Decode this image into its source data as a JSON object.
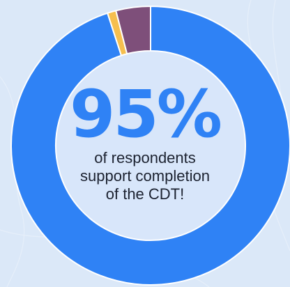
{
  "colors": {
    "background": "#dbe8f8",
    "primary": "#2f82f5",
    "text": "#1c2230"
  },
  "headline": {
    "value": "95%",
    "line1": "of respondents",
    "line2": "support completion",
    "line3": "of the CDT!"
  },
  "chart_data": {
    "type": "pie",
    "title": "",
    "categories": [
      "",
      "",
      ""
    ],
    "values": [
      95,
      1,
      4
    ],
    "colors": [
      "#2f82f5",
      "#f6bf4f",
      "#7e4f7a"
    ],
    "start": "top",
    "direction": "clockwise",
    "donut": true
  }
}
